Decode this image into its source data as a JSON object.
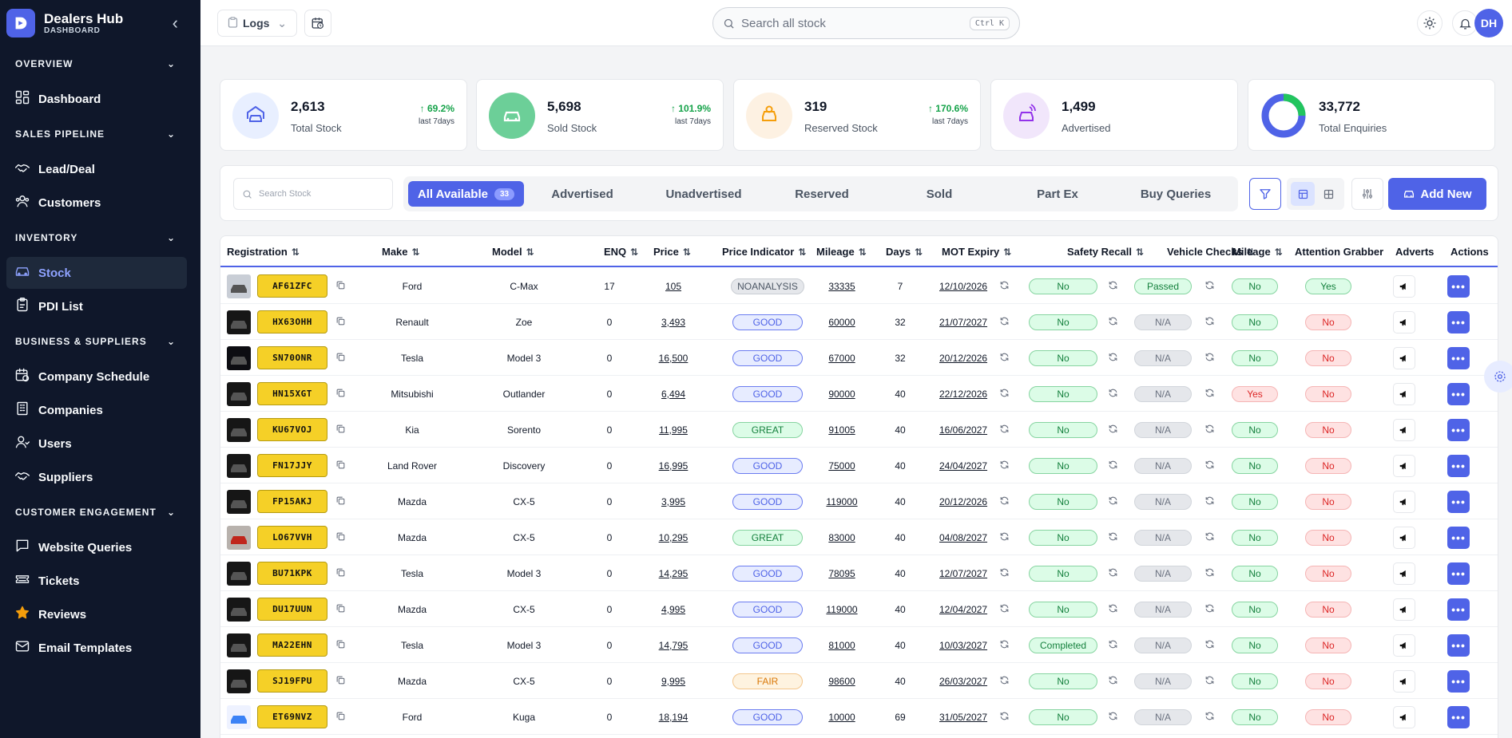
{
  "brand": {
    "title": "Dealers Hub",
    "subtitle": "DASHBOARD"
  },
  "sidebar": {
    "sections": [
      {
        "label": "OVERVIEW",
        "items": [
          {
            "label": "Dashboard",
            "icon": "dashboard-icon"
          }
        ]
      },
      {
        "label": "SALES PIPELINE",
        "items": [
          {
            "label": "Lead/Deal",
            "icon": "handshake-icon"
          },
          {
            "label": "Customers",
            "icon": "customers-icon"
          }
        ]
      },
      {
        "label": "INVENTORY",
        "items": [
          {
            "label": "Stock",
            "icon": "car-icon",
            "active": true
          },
          {
            "label": "PDI List",
            "icon": "clipboard-icon"
          }
        ]
      },
      {
        "label": "BUSINESS & SUPPLIERS",
        "items": [
          {
            "label": "Company Schedule",
            "icon": "calendar-icon"
          },
          {
            "label": "Companies",
            "icon": "building-icon"
          },
          {
            "label": "Users",
            "icon": "users-icon"
          },
          {
            "label": "Suppliers",
            "icon": "handshake-icon"
          }
        ]
      },
      {
        "label": "CUSTOMER ENGAGEMENT",
        "items": [
          {
            "label": "Website Queries",
            "icon": "message-icon"
          },
          {
            "label": "Tickets",
            "icon": "ticket-icon"
          },
          {
            "label": "Reviews",
            "icon": "star-icon"
          },
          {
            "label": "Email Templates",
            "icon": "mail-icon"
          }
        ]
      }
    ]
  },
  "topbar": {
    "logs_label": "Logs",
    "search_placeholder": "Search all stock",
    "shortcut": "Ctrl K",
    "avatar_initials": "DH"
  },
  "stats": [
    {
      "value": "2,613",
      "label": "Total Stock",
      "change": "↑ 69.2%",
      "period": "last 7days",
      "color": "#4f63e7",
      "bg": "#e8efff"
    },
    {
      "value": "5,698",
      "label": "Sold Stock",
      "change": "↑ 101.9%",
      "period": "last 7days",
      "color": "#ffffff",
      "bg": "#6ccf98"
    },
    {
      "value": "319",
      "label": "Reserved Stock",
      "change": "↑ 170.6%",
      "period": "last 7days",
      "color": "#f59e0b",
      "bg": "#fdf1e2"
    },
    {
      "value": "1,499",
      "label": "Advertised",
      "change": "",
      "period": "",
      "color": "#9333ea",
      "bg": "#f1e6fb"
    },
    {
      "value": "33,772",
      "label": "Total Enquiries",
      "change": "",
      "period": "",
      "color": "#4f63e7",
      "bg": ""
    }
  ],
  "toolbar": {
    "search_placeholder": "Search Stock",
    "tabs": [
      {
        "label": "All Available",
        "count": "33",
        "active": true
      },
      {
        "label": "Advertised"
      },
      {
        "label": "Unadvertised"
      },
      {
        "label": "Reserved"
      },
      {
        "label": "Sold"
      },
      {
        "label": "Part Ex"
      },
      {
        "label": "Buy Queries"
      }
    ],
    "add_new_label": "Add New"
  },
  "table": {
    "columns": [
      "Registration",
      "Make",
      "Model",
      "ENQ",
      "Price",
      "Price Indicator",
      "Mileage",
      "Days",
      "MOT Expiry",
      "Safety Recall",
      "Vehicle Checks",
      "Mileage",
      "Attention Grabber",
      "Adverts",
      "Actions"
    ],
    "rows": [
      {
        "reg": "AF61ZFC",
        "make": "Ford",
        "model": "C-Max",
        "enq": "17",
        "price": "105",
        "indicator": "NOANALYSIS",
        "mileage": "33335",
        "days": "7",
        "mot": "12/10/2026",
        "recall": "No",
        "checks": "Passed",
        "mileage_flag": "No",
        "attention": "Yes",
        "thumb": "light"
      },
      {
        "reg": "HX63OHH",
        "make": "Renault",
        "model": "Zoe",
        "enq": "0",
        "price": "3,493",
        "indicator": "GOOD",
        "mileage": "60000",
        "days": "32",
        "mot": "21/07/2027",
        "recall": "No",
        "checks": "N/A",
        "mileage_flag": "No",
        "attention": "No",
        "thumb": "dark"
      },
      {
        "reg": "SN70ONR",
        "make": "Tesla",
        "model": "Model 3",
        "enq": "0",
        "price": "16,500",
        "indicator": "GOOD",
        "mileage": "67000",
        "days": "32",
        "mot": "20/12/2026",
        "recall": "No",
        "checks": "N/A",
        "mileage_flag": "No",
        "attention": "No",
        "thumb": "night"
      },
      {
        "reg": "HN15XGT",
        "make": "Mitsubishi",
        "model": "Outlander",
        "enq": "0",
        "price": "6,494",
        "indicator": "GOOD",
        "mileage": "90000",
        "days": "40",
        "mot": "22/12/2026",
        "recall": "No",
        "checks": "N/A",
        "mileage_flag": "Yes",
        "attention": "No",
        "thumb": "dark"
      },
      {
        "reg": "KU67VOJ",
        "make": "Kia",
        "model": "Sorento",
        "enq": "0",
        "price": "11,995",
        "indicator": "GREAT",
        "mileage": "91005",
        "days": "40",
        "mot": "16/06/2027",
        "recall": "No",
        "checks": "N/A",
        "mileage_flag": "No",
        "attention": "No",
        "thumb": "dark"
      },
      {
        "reg": "FN17JJY",
        "make": "Land Rover",
        "model": "Discovery",
        "enq": "0",
        "price": "16,995",
        "indicator": "GOOD",
        "mileage": "75000",
        "days": "40",
        "mot": "24/04/2027",
        "recall": "No",
        "checks": "N/A",
        "mileage_flag": "No",
        "attention": "No",
        "thumb": "dark"
      },
      {
        "reg": "FP15AKJ",
        "make": "Mazda",
        "model": "CX-5",
        "enq": "0",
        "price": "3,995",
        "indicator": "GOOD",
        "mileage": "119000",
        "days": "40",
        "mot": "20/12/2026",
        "recall": "No",
        "checks": "N/A",
        "mileage_flag": "No",
        "attention": "No",
        "thumb": "dark"
      },
      {
        "reg": "LO67VVH",
        "make": "Mazda",
        "model": "CX-5",
        "enq": "0",
        "price": "10,295",
        "indicator": "GREAT",
        "mileage": "83000",
        "days": "40",
        "mot": "04/08/2027",
        "recall": "No",
        "checks": "N/A",
        "mileage_flag": "No",
        "attention": "No",
        "thumb": "red"
      },
      {
        "reg": "BU71KPK",
        "make": "Tesla",
        "model": "Model 3",
        "enq": "0",
        "price": "14,295",
        "indicator": "GOOD",
        "mileage": "78095",
        "days": "40",
        "mot": "12/07/2027",
        "recall": "No",
        "checks": "N/A",
        "mileage_flag": "No",
        "attention": "No",
        "thumb": "dark"
      },
      {
        "reg": "DU17UUN",
        "make": "Mazda",
        "model": "CX-5",
        "enq": "0",
        "price": "4,995",
        "indicator": "GOOD",
        "mileage": "119000",
        "days": "40",
        "mot": "12/04/2027",
        "recall": "No",
        "checks": "N/A",
        "mileage_flag": "No",
        "attention": "No",
        "thumb": "dark"
      },
      {
        "reg": "MA22EHN",
        "make": "Tesla",
        "model": "Model 3",
        "enq": "0",
        "price": "14,795",
        "indicator": "GOOD",
        "mileage": "81000",
        "days": "40",
        "mot": "10/03/2027",
        "recall": "Completed",
        "checks": "N/A",
        "mileage_flag": "No",
        "attention": "No",
        "thumb": "dark"
      },
      {
        "reg": "SJ19FPU",
        "make": "Mazda",
        "model": "CX-5",
        "enq": "0",
        "price": "9,995",
        "indicator": "FAIR",
        "mileage": "98600",
        "days": "40",
        "mot": "26/03/2027",
        "recall": "No",
        "checks": "N/A",
        "mileage_flag": "No",
        "attention": "No",
        "thumb": "dark"
      },
      {
        "reg": "ET69NVZ",
        "make": "Ford",
        "model": "Kuga",
        "enq": "0",
        "price": "18,194",
        "indicator": "GOOD",
        "mileage": "10000",
        "days": "69",
        "mot": "31/05/2027",
        "recall": "No",
        "checks": "N/A",
        "mileage_flag": "No",
        "attention": "No",
        "thumb": "white"
      }
    ]
  }
}
